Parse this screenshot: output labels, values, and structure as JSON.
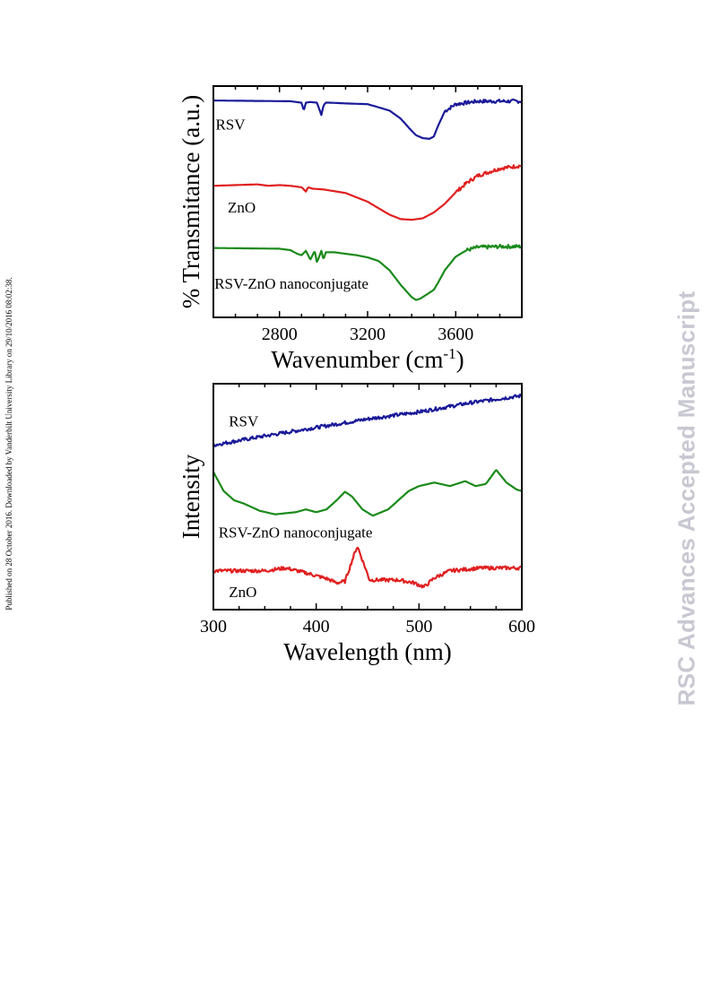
{
  "side_note": "Published on 28 October 2016. Downloaded by Vanderbilt University Library on 29/10/2016 08:02:38.",
  "watermark": "RSC Advances Accepted Manuscript",
  "chart_data": [
    {
      "type": "line",
      "ylabel": "% Transmitance (a.u.)",
      "xlabel_main": "Wavenumber (cm",
      "xlabel_sup": "-1",
      "xlabel_tail": ")",
      "xlim": [
        2500,
        3900
      ],
      "ylim": [
        0,
        3.2
      ],
      "xticks": [
        2800,
        3200,
        3600
      ],
      "xtick_labels": [
        "2800",
        "3200",
        "3600"
      ],
      "grid": false,
      "series": [
        {
          "name": "RSV",
          "color": "#1a1a99",
          "noise_from": 3550,
          "x": [
            2500,
            2850,
            2900,
            2910,
            2920,
            2940,
            2970,
            2990,
            3000,
            3010,
            3030,
            3100,
            3200,
            3300,
            3350,
            3400,
            3420,
            3450,
            3480,
            3500,
            3520,
            3550,
            3600,
            3700,
            3800,
            3900
          ],
          "y": [
            3.0,
            2.99,
            2.97,
            2.86,
            2.97,
            2.98,
            2.97,
            2.8,
            2.93,
            2.97,
            2.97,
            2.96,
            2.95,
            2.86,
            2.75,
            2.58,
            2.52,
            2.48,
            2.47,
            2.5,
            2.65,
            2.85,
            2.95,
            2.99,
            2.99,
            2.99
          ]
        },
        {
          "name": "ZnO",
          "color": "#e02020",
          "noise_from": 3600,
          "x": [
            2500,
            2700,
            2750,
            2800,
            2850,
            2900,
            2920,
            2930,
            2950,
            3000,
            3100,
            3200,
            3300,
            3350,
            3400,
            3450,
            3500,
            3550,
            3600,
            3650,
            3700,
            3800,
            3900
          ],
          "y": [
            1.82,
            1.84,
            1.82,
            1.83,
            1.82,
            1.8,
            1.74,
            1.8,
            1.78,
            1.77,
            1.72,
            1.6,
            1.42,
            1.36,
            1.35,
            1.37,
            1.45,
            1.57,
            1.73,
            1.86,
            1.96,
            2.06,
            2.1
          ]
        },
        {
          "name": "RSV-ZnO nanoconjugate",
          "color": "#1a8a1a",
          "noise_from": 3650,
          "x": [
            2500,
            2800,
            2850,
            2880,
            2900,
            2920,
            2940,
            2960,
            2970,
            2990,
            3000,
            3010,
            3050,
            3100,
            3150,
            3200,
            3250,
            3300,
            3350,
            3400,
            3420,
            3440,
            3460,
            3480,
            3500,
            3520,
            3550,
            3600,
            3650,
            3700,
            3800,
            3900
          ],
          "y": [
            0.96,
            0.95,
            0.93,
            0.88,
            0.86,
            0.92,
            0.8,
            0.92,
            0.76,
            0.92,
            0.8,
            0.9,
            0.9,
            0.88,
            0.86,
            0.83,
            0.78,
            0.65,
            0.45,
            0.28,
            0.24,
            0.26,
            0.3,
            0.34,
            0.38,
            0.48,
            0.65,
            0.84,
            0.93,
            0.97,
            0.98,
            0.98
          ]
        }
      ],
      "labels": [
        {
          "text": "RSV",
          "x": 2510,
          "y": 2.6
        },
        {
          "text": "ZnO",
          "x": 2565,
          "y": 1.45
        },
        {
          "text": "RSV-ZnO nanoconjugate",
          "x": 2505,
          "y": 0.4
        }
      ]
    },
    {
      "type": "line",
      "ylabel": "Intensity",
      "xlabel": "Wavelength (nm)",
      "xlim": [
        300,
        600
      ],
      "ylim": [
        0,
        3.2
      ],
      "xticks": [
        300,
        400,
        500,
        600
      ],
      "xtick_labels": [
        "300",
        "400",
        "500",
        "600"
      ],
      "grid": false,
      "series": [
        {
          "name": "RSV",
          "color": "#1a1a99",
          "noise_from": 300,
          "x": [
            300,
            350,
            400,
            450,
            500,
            550,
            600
          ],
          "y": [
            2.33,
            2.46,
            2.58,
            2.7,
            2.8,
            2.93,
            3.03
          ]
        },
        {
          "name": "RSV-ZnO nanoconjugate",
          "color": "#1a8a1a",
          "noise_from": 900,
          "x": [
            300,
            310,
            320,
            330,
            345,
            360,
            380,
            390,
            400,
            410,
            420,
            428,
            435,
            445,
            455,
            470,
            480,
            490,
            500,
            515,
            530,
            545,
            555,
            565,
            575,
            585,
            595,
            600
          ],
          "y": [
            1.95,
            1.68,
            1.55,
            1.5,
            1.4,
            1.35,
            1.38,
            1.42,
            1.38,
            1.42,
            1.55,
            1.67,
            1.6,
            1.42,
            1.33,
            1.42,
            1.55,
            1.68,
            1.75,
            1.8,
            1.75,
            1.82,
            1.75,
            1.78,
            1.98,
            1.8,
            1.7,
            1.68
          ]
        },
        {
          "name": "ZnO",
          "color": "#e02020",
          "noise_from": 300,
          "x": [
            300,
            330,
            350,
            370,
            390,
            410,
            420,
            428,
            435,
            440,
            445,
            452,
            460,
            480,
            495,
            505,
            515,
            530,
            560,
            600
          ],
          "y": [
            0.55,
            0.55,
            0.55,
            0.59,
            0.52,
            0.44,
            0.38,
            0.4,
            0.7,
            0.9,
            0.7,
            0.42,
            0.42,
            0.42,
            0.38,
            0.32,
            0.45,
            0.55,
            0.59,
            0.59
          ]
        }
      ],
      "labels": [
        {
          "text": "RSV",
          "x": 315,
          "y": 2.6
        },
        {
          "text": "RSV-ZnO nanoconjugate",
          "x": 305,
          "y": 1.02
        },
        {
          "text": "ZnO",
          "x": 315,
          "y": 0.18
        }
      ]
    }
  ]
}
